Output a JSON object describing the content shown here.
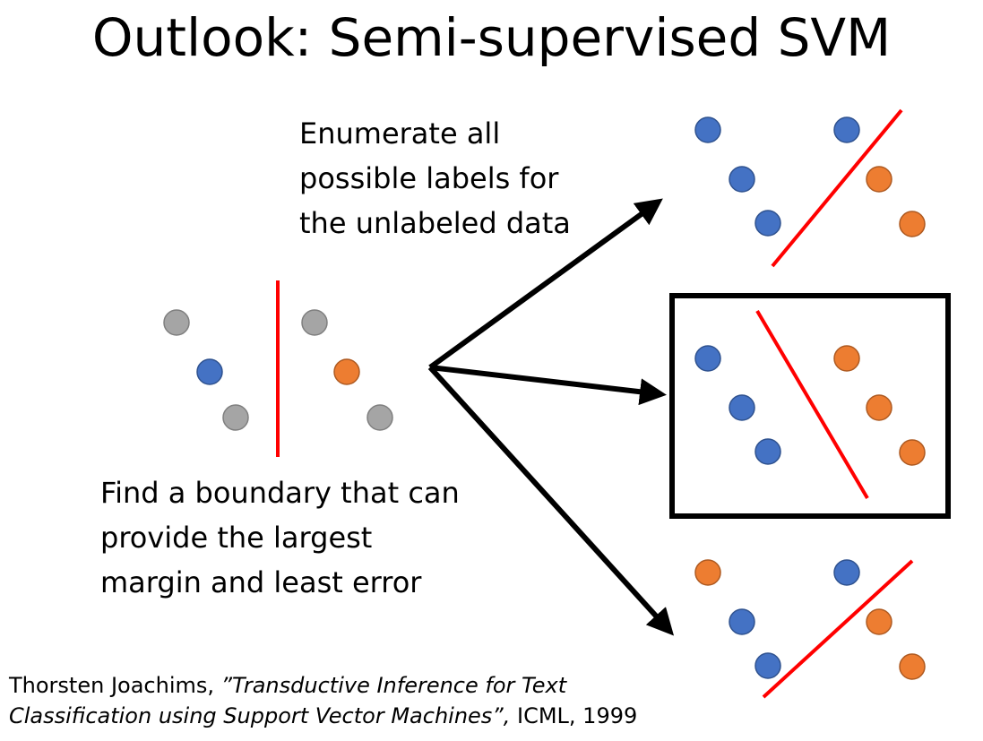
{
  "title": "Outlook: Semi-supervised SVM",
  "enumerate_text": {
    "line1": "Enumerate all",
    "line2": "possible labels for",
    "line3": "the unlabeled data"
  },
  "find_text": {
    "line1": "Find a boundary that can",
    "line2": "provide the largest",
    "line3": "margin and least error"
  },
  "citation": {
    "author": "Thorsten Joachims, ",
    "title_part1": "”Transductive Inference for Text",
    "title_part2": "Classification using Support Vector Machines”,",
    "venue": " ICML, 1999"
  },
  "colors": {
    "blue": "#4472c4",
    "orange": "#ed7d31",
    "gray": "#a5a5a5",
    "boundary": "#ff0000",
    "arrow": "#000000"
  },
  "scenarios": [
    {
      "name": "scenario-top",
      "highlighted": false,
      "point_colors": [
        "blue",
        "blue",
        "blue",
        "blue",
        "orange",
        "orange"
      ]
    },
    {
      "name": "scenario-middle",
      "highlighted": true,
      "point_colors": [
        "blue",
        "blue",
        "blue",
        "orange",
        "orange",
        "orange"
      ]
    },
    {
      "name": "scenario-bottom",
      "highlighted": false,
      "point_colors": [
        "orange",
        "blue",
        "blue",
        "blue",
        "orange",
        "orange"
      ]
    }
  ],
  "source_point_colors": [
    "gray",
    "blue",
    "gray",
    "gray",
    "orange",
    "gray"
  ]
}
